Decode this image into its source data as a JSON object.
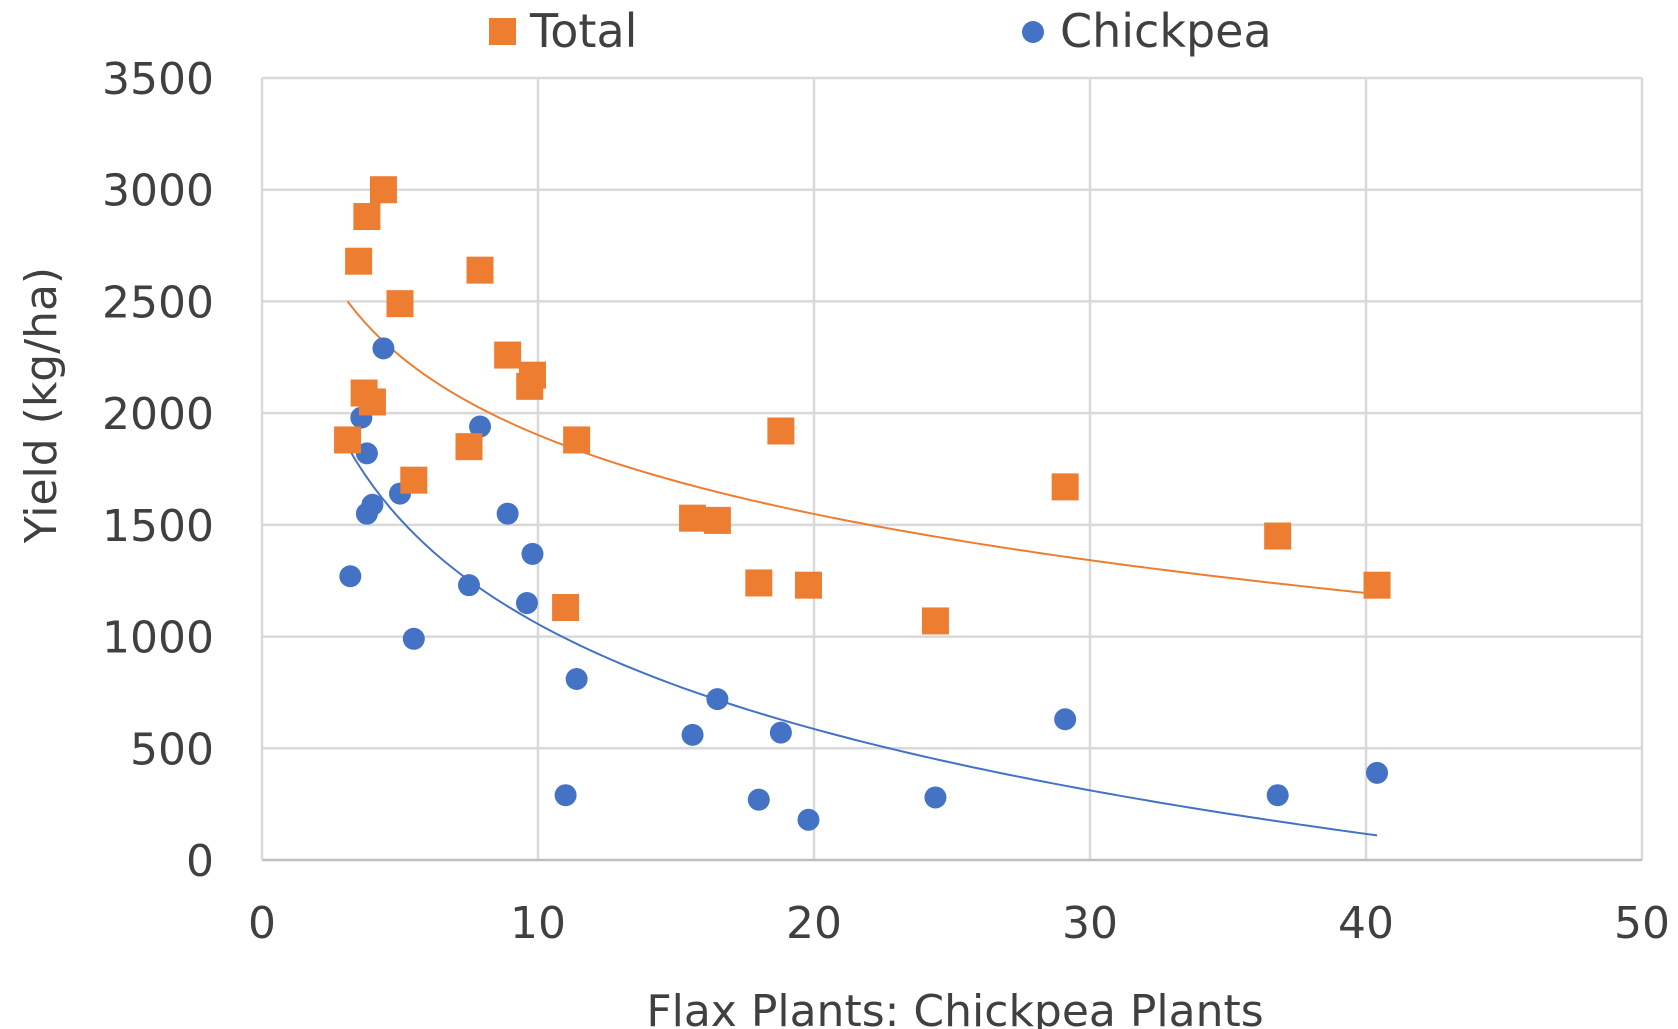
{
  "chart_data": {
    "type": "scatter",
    "title": "",
    "xlabel": "Flax Plants: Chickpea Plants",
    "ylabel": "Yield (kg/ha)",
    "xlim": [
      0,
      50
    ],
    "ylim": [
      0,
      3500
    ],
    "x_ticks": [
      "0",
      "10",
      "20",
      "30",
      "40",
      "50"
    ],
    "y_ticks": [
      "0",
      "500",
      "1000",
      "1500",
      "2000",
      "2500",
      "3000",
      "3500"
    ],
    "grid": true,
    "legend_position": "top",
    "series": [
      {
        "name": "Total",
        "marker": "square",
        "color": "#ED7D31",
        "trendline": "logarithmic",
        "points": [
          {
            "x": 3.1,
            "y": 1880
          },
          {
            "x": 3.5,
            "y": 2680
          },
          {
            "x": 3.7,
            "y": 2090
          },
          {
            "x": 3.8,
            "y": 2880
          },
          {
            "x": 4.0,
            "y": 2050
          },
          {
            "x": 4.4,
            "y": 3000
          },
          {
            "x": 5.0,
            "y": 2490
          },
          {
            "x": 5.5,
            "y": 1700
          },
          {
            "x": 7.5,
            "y": 1850
          },
          {
            "x": 7.9,
            "y": 2640
          },
          {
            "x": 8.9,
            "y": 2260
          },
          {
            "x": 9.7,
            "y": 2120
          },
          {
            "x": 9.8,
            "y": 2170
          },
          {
            "x": 11.0,
            "y": 1130
          },
          {
            "x": 11.4,
            "y": 1880
          },
          {
            "x": 15.6,
            "y": 1530
          },
          {
            "x": 16.5,
            "y": 1520
          },
          {
            "x": 18.0,
            "y": 1240
          },
          {
            "x": 18.8,
            "y": 1920
          },
          {
            "x": 19.8,
            "y": 1230
          },
          {
            "x": 24.4,
            "y": 1070
          },
          {
            "x": 29.1,
            "y": 1670
          },
          {
            "x": 36.8,
            "y": 1450
          },
          {
            "x": 40.4,
            "y": 1230
          }
        ]
      },
      {
        "name": "Chickpea",
        "marker": "circle",
        "color": "#4472C4",
        "trendline": "logarithmic",
        "points": [
          {
            "x": 3.2,
            "y": 1270
          },
          {
            "x": 3.6,
            "y": 1980
          },
          {
            "x": 3.8,
            "y": 1820
          },
          {
            "x": 3.8,
            "y": 1550
          },
          {
            "x": 4.0,
            "y": 1590
          },
          {
            "x": 4.4,
            "y": 2290
          },
          {
            "x": 5.0,
            "y": 1640
          },
          {
            "x": 5.5,
            "y": 990
          },
          {
            "x": 7.5,
            "y": 1230
          },
          {
            "x": 7.9,
            "y": 1940
          },
          {
            "x": 8.9,
            "y": 1550
          },
          {
            "x": 9.6,
            "y": 1150
          },
          {
            "x": 9.8,
            "y": 1370
          },
          {
            "x": 11.0,
            "y": 290
          },
          {
            "x": 11.4,
            "y": 810
          },
          {
            "x": 15.6,
            "y": 560
          },
          {
            "x": 16.5,
            "y": 720
          },
          {
            "x": 18.0,
            "y": 270
          },
          {
            "x": 18.8,
            "y": 570
          },
          {
            "x": 19.8,
            "y": 180
          },
          {
            "x": 24.4,
            "y": 280
          },
          {
            "x": 29.1,
            "y": 630
          },
          {
            "x": 36.8,
            "y": 290
          },
          {
            "x": 40.4,
            "y": 390
          }
        ]
      }
    ],
    "trendlines": [
      {
        "series": "Total",
        "color": "#ED7D31",
        "type": "logarithmic",
        "points": [
          {
            "x": 3.1,
            "y": 2500
          },
          {
            "x": 40.4,
            "y": 1190
          }
        ]
      },
      {
        "series": "Chickpea",
        "color": "#4472C4",
        "type": "logarithmic",
        "points": [
          {
            "x": 3.1,
            "y": 1850
          },
          {
            "x": 40.4,
            "y": 110
          }
        ]
      }
    ]
  }
}
